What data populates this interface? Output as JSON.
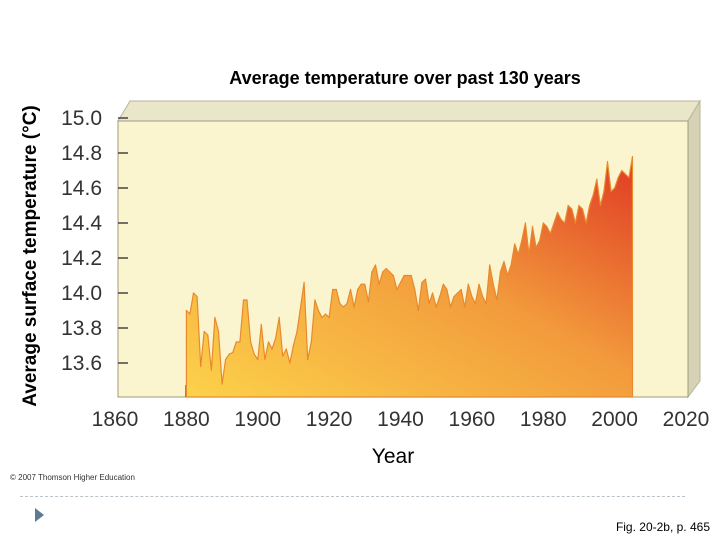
{
  "chart_data": {
    "type": "area",
    "title": "Average temperature over past 130 years",
    "xlabel": "Year",
    "ylabel": "Average surface temperature (°C)",
    "xlim": [
      1860,
      2020
    ],
    "ylim": [
      13.45,
      15.0
    ],
    "x_ticks": [
      1860,
      1880,
      1900,
      1920,
      1940,
      1960,
      1980,
      2000,
      2020
    ],
    "y_ticks": [
      15.0,
      14.8,
      14.6,
      14.4,
      14.2,
      14.0,
      13.8,
      13.6
    ],
    "x_tick_labels": [
      "1860",
      "1880",
      "1900",
      "1920",
      "1940",
      "1960",
      "1980",
      "2000",
      "2020"
    ],
    "y_tick_labels": [
      "15.0",
      "14.8",
      "14.6",
      "14.4",
      "14.2",
      "14.0",
      "13.8",
      "13.6"
    ],
    "series": [
      {
        "x": [
          1880,
          1881,
          1882,
          1883,
          1884,
          1885,
          1886,
          1887,
          1888,
          1889,
          1890,
          1891,
          1892,
          1893,
          1894,
          1895,
          1896,
          1897,
          1898,
          1899,
          1900,
          1901,
          1902,
          1903,
          1904,
          1905,
          1906,
          1907,
          1908,
          1909,
          1910,
          1911,
          1912,
          1913,
          1914,
          1915,
          1916,
          1917,
          1918,
          1919,
          1920,
          1921,
          1922,
          1923,
          1924,
          1925,
          1926,
          1927,
          1928,
          1929,
          1930,
          1931,
          1932,
          1933,
          1934,
          1935,
          1936,
          1937,
          1938,
          1939,
          1940,
          1941,
          1942,
          1943,
          1944,
          1945,
          1946,
          1947,
          1948,
          1949,
          1950,
          1951,
          1952,
          1953,
          1954,
          1955,
          1956,
          1957,
          1958,
          1959,
          1960,
          1961,
          1962,
          1963,
          1964,
          1965,
          1966,
          1967,
          1968,
          1969,
          1970,
          1971,
          1972,
          1973,
          1974,
          1975,
          1976,
          1977,
          1978,
          1979,
          1980,
          1981,
          1982,
          1983,
          1984,
          1985,
          1986,
          1987,
          1988,
          1989,
          1990,
          1991,
          1992,
          1993,
          1994,
          1995,
          1996,
          1997,
          1998,
          1999,
          2000,
          2001,
          2002,
          2003,
          2004,
          2005
        ],
        "values": [
          13.9,
          13.88,
          14.0,
          13.98,
          13.58,
          13.78,
          13.76,
          13.56,
          13.86,
          13.78,
          13.48,
          13.62,
          13.65,
          13.66,
          13.72,
          13.72,
          13.96,
          13.96,
          13.72,
          13.65,
          13.62,
          13.82,
          13.62,
          13.72,
          13.68,
          13.74,
          13.86,
          13.64,
          13.68,
          13.6,
          13.7,
          13.78,
          13.92,
          14.06,
          13.62,
          13.72,
          13.96,
          13.9,
          13.86,
          13.88,
          13.86,
          14.02,
          14.02,
          13.94,
          13.92,
          13.94,
          14.02,
          13.92,
          14.02,
          14.05,
          14.05,
          13.95,
          14.12,
          14.16,
          14.05,
          14.12,
          14.14,
          14.12,
          14.1,
          14.02,
          14.06,
          14.1,
          14.1,
          14.1,
          14.02,
          13.9,
          14.06,
          14.08,
          13.94,
          14.0,
          13.92,
          13.98,
          14.05,
          14.02,
          13.92,
          13.98,
          14.0,
          14.02,
          13.92,
          14.05,
          13.98,
          13.94,
          14.05,
          13.98,
          13.94,
          14.16,
          14.05,
          13.96,
          14.12,
          14.18,
          14.1,
          14.16,
          14.28,
          14.22,
          14.3,
          14.4,
          14.22,
          14.38,
          14.26,
          14.3,
          14.4,
          14.38,
          14.34,
          14.4,
          14.46,
          14.42,
          14.4,
          14.5,
          14.48,
          14.4,
          14.5,
          14.48,
          14.4,
          14.5,
          14.56,
          14.65,
          14.5,
          14.58,
          14.75,
          14.58,
          14.6,
          14.66,
          14.7,
          14.68,
          14.66,
          14.78
        ]
      }
    ],
    "footer": {
      "copyright": "© 2007 Thomson Higher Education",
      "figure_ref": "Fig. 20-2b, p. 465"
    }
  }
}
